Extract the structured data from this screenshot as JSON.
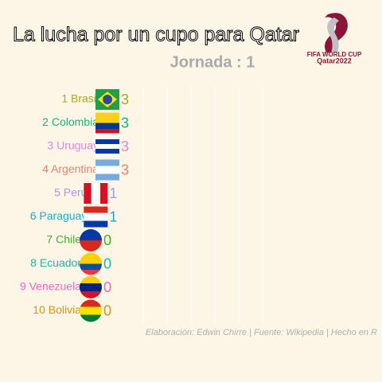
{
  "chart_data": {
    "type": "bar",
    "orientation": "horizontal",
    "title": "La lucha por un cupo para Qatar",
    "subtitle": "Jornada : 1",
    "caption": "Elaboración: Edwin Chirre | Fuente: Wikipedia | Hecho en R",
    "logo_text": [
      "FIFA WORLD CUP",
      "Qatar2022"
    ],
    "categories": [
      "1 Brasil",
      "2 Colombia",
      "3 Uruguay",
      "4 Argentina",
      "5 Perú",
      "6 Paraguay",
      "7 Chile",
      "8 Ecuador",
      "9 Venezuela",
      "10 Bolivia"
    ],
    "values": [
      3,
      3,
      3,
      3,
      1,
      1,
      0,
      0,
      0,
      0
    ],
    "colors": [
      "#a9a81e",
      "#1fb07a",
      "#e27ff0",
      "#f0806e",
      "#9c9cf2",
      "#1fa9c9",
      "#3fb51f",
      "#1cb3b3",
      "#f564c4",
      "#d4951c"
    ],
    "xlim": [
      0,
      3
    ]
  }
}
